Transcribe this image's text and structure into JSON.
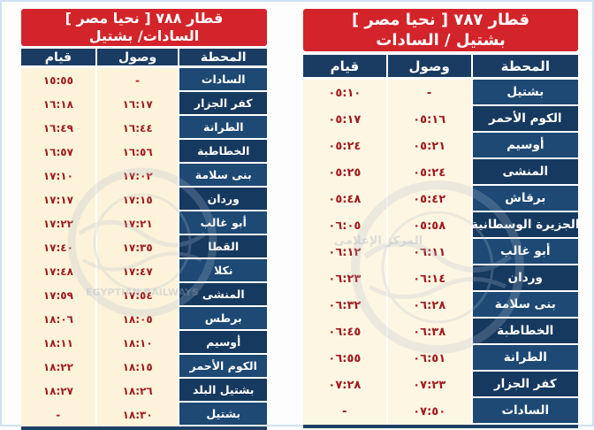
{
  "page": {
    "frame_border_color": "#cfe2f2",
    "background": "#fdfdfe"
  },
  "colors": {
    "banner_red": "#d2242a",
    "navy_header": "#1a3c63",
    "navy_station": "#16395f",
    "cream_cell": "#fcf3da",
    "time_red": "#a01c20",
    "separator_white": "#ffffff"
  },
  "columns": {
    "station": "المحطة",
    "arrival": "وصول",
    "departure": "قيام"
  },
  "watermark": {
    "text_en": "EGYPTIAN RAILWAYS",
    "text_ar": "المركز الإعلامى"
  },
  "tables": [
    {
      "id": "train-788",
      "title_line1": "قطار ٧٨٨ [ نحيا مصر ]",
      "title_line2": "السادات/ بشتيل",
      "rows": [
        {
          "station": "السادات",
          "arrival": "-",
          "departure": "١٥:٥٥"
        },
        {
          "station": "كفر الجزار",
          "arrival": "١٦:١٧",
          "departure": "١٦:١٨"
        },
        {
          "station": "الطرانة",
          "arrival": "١٦:٤٤",
          "departure": "١٦:٤٩"
        },
        {
          "station": "الخطاطبة",
          "arrival": "١٦:٥٦",
          "departure": "١٦:٥٧"
        },
        {
          "station": "بنى سلامة",
          "arrival": "١٧:٠٢",
          "departure": "١٧:١٠"
        },
        {
          "station": "وردان",
          "arrival": "١٧:١٥",
          "departure": "١٧:١٧"
        },
        {
          "station": "أبو غالب",
          "arrival": "١٧:٢١",
          "departure": "١٧:٢٢"
        },
        {
          "station": "القطا",
          "arrival": "١٧:٣٥",
          "departure": "١٧:٤٠"
        },
        {
          "station": "نكلا",
          "arrival": "١٧:٤٧",
          "departure": "١٧:٤٨"
        },
        {
          "station": "المنشى",
          "arrival": "١٧:٥٤",
          "departure": "١٧:٥٩"
        },
        {
          "station": "برطس",
          "arrival": "١٨:٠٥",
          "departure": "١٨:٠٦"
        },
        {
          "station": "أوسيم",
          "arrival": "١٨:١٠",
          "departure": "١٨:١١"
        },
        {
          "station": "الكوم الأحمر",
          "arrival": "١٨:١٥",
          "departure": "١٨:٢٢"
        },
        {
          "station": "بشتيل البلد",
          "arrival": "١٨:٢٦",
          "departure": "١٨:٢٧"
        },
        {
          "station": "بشتيل",
          "arrival": "١٨:٣٠",
          "departure": "-"
        }
      ]
    },
    {
      "id": "train-787",
      "title_line1": "قطار ٧٨٧ [ نحيا مصر ]",
      "title_line2": "بشتيل / السادات",
      "rows": [
        {
          "station": "بشتيل",
          "arrival": "-",
          "departure": "٠٥:١٠"
        },
        {
          "station": "الكوم الأحمر",
          "arrival": "٠٥:١٦",
          "departure": "٠٥:١٧"
        },
        {
          "station": "أوسيم",
          "arrival": "٠٥:٢١",
          "departure": "٠٥:٢٤"
        },
        {
          "station": "المنشى",
          "arrival": "٠٥:٢٤",
          "departure": "٠٥:٢٥"
        },
        {
          "station": "برقاش",
          "arrival": "٠٥:٤٢",
          "departure": "٠٥:٤٨"
        },
        {
          "station": "الجزيرة الوسطانية",
          "arrival": "٠٥:٥٨",
          "departure": "٠٦:٠٥"
        },
        {
          "station": "أبو غالب",
          "arrival": "٠٦:١١",
          "departure": "٠٦:١٢"
        },
        {
          "station": "وردان",
          "arrival": "٠٦:١٤",
          "departure": "٠٦:٢٣"
        },
        {
          "station": "بنى سلامة",
          "arrival": "٠٦:٢٨",
          "departure": "٠٦:٣٢"
        },
        {
          "station": "الخطاطبة",
          "arrival": "٠٦:٣٨",
          "departure": "٠٦:٤٥"
        },
        {
          "station": "الطرانة",
          "arrival": "٠٦:٥١",
          "departure": "٠٦:٥٥"
        },
        {
          "station": "كفر الجزار",
          "arrival": "٠٧:٢٣",
          "departure": "٠٧:٢٨"
        },
        {
          "station": "السادات",
          "arrival": "٠٧:٥٠",
          "departure": "-"
        }
      ]
    }
  ]
}
